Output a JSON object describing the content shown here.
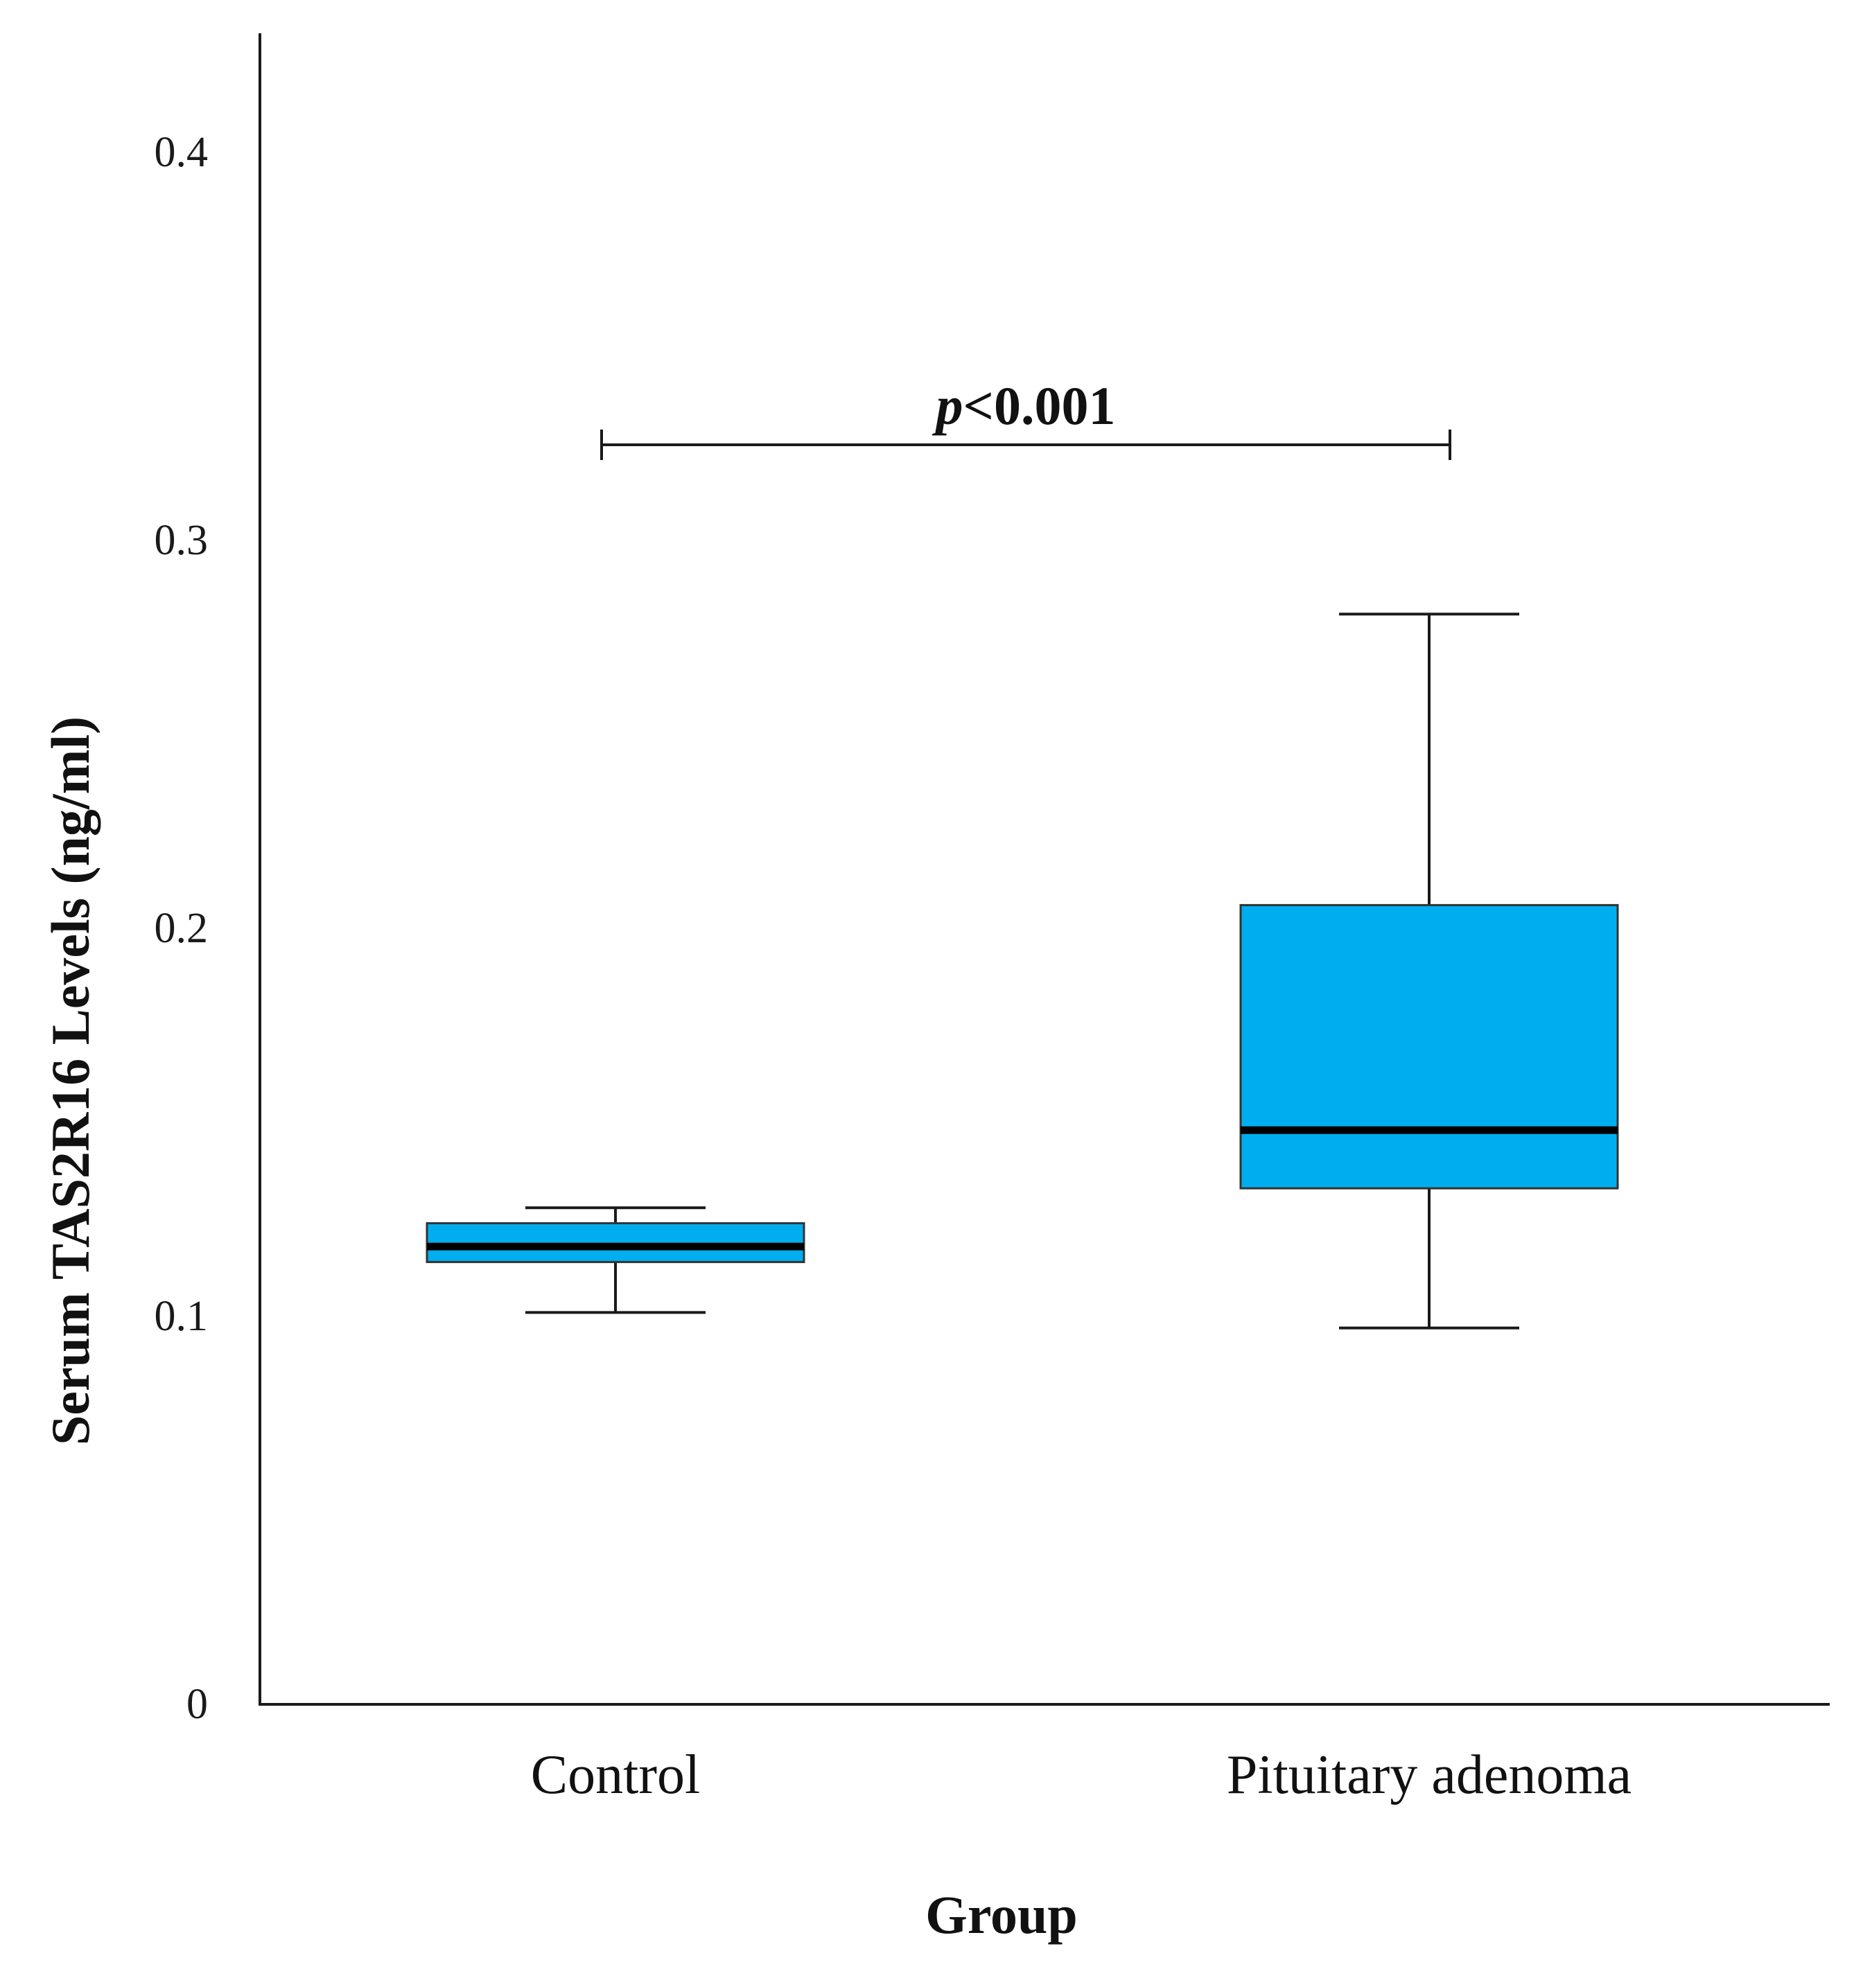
{
  "chart_data": {
    "type": "box",
    "title": "",
    "xlabel": "Group",
    "ylabel": "Serum TAS2R16 Levels (ng/ml)",
    "ylim": [
      0,
      0.43
    ],
    "yticks": [
      "0",
      "0.1",
      "0.2",
      "0.3",
      "0.4"
    ],
    "ytick_values": [
      0,
      0.1,
      0.2,
      0.3,
      0.4
    ],
    "gridlines": false,
    "box_color": "#00AEEF",
    "categories": [
      "Control",
      "Pituitary adenoma"
    ],
    "boxes": [
      {
        "category": "Control",
        "min": 0.101,
        "q1": 0.114,
        "median": 0.118,
        "q3": 0.124,
        "max": 0.128
      },
      {
        "category": "Pituitary adenoma",
        "min": 0.097,
        "q1": 0.133,
        "median": 0.148,
        "q3": 0.206,
        "max": 0.281
      }
    ],
    "annotation": {
      "p_symbol": "p",
      "p_text": "<0.001",
      "from_category": "Control",
      "to_category": "Pituitary adenoma",
      "y": 0.325
    }
  }
}
